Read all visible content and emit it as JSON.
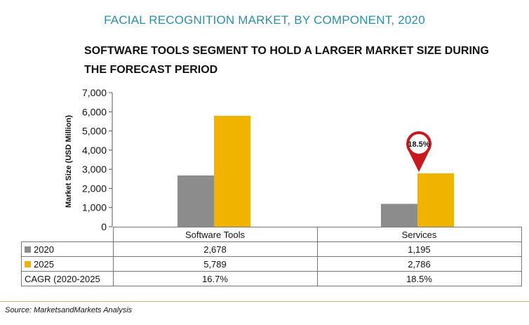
{
  "title": "FACIAL RECOGNITION MARKET, BY COMPONENT, 2020",
  "subtitle": "SOFTWARE TOOLS SEGMENT TO HOLD A LARGER MARKET SIZE DURING THE FORECAST PERIOD",
  "source": "Source: MarketsandMarkets Analysis",
  "colors": {
    "title": "#2a8fa6",
    "series_2020": "#8c8c8c",
    "series_2025": "#f0b400",
    "marker": "#c8191e"
  },
  "table": {
    "rows": [
      {
        "label": "2020",
        "values": [
          "2,678",
          "1,195"
        ]
      },
      {
        "label": "2025",
        "values": [
          "5,789",
          "2,786"
        ]
      },
      {
        "label": "CAGR (2020-2025",
        "values": [
          "16.7%",
          "18.5%"
        ]
      }
    ]
  },
  "chart_data": {
    "type": "bar",
    "categories": [
      "Software Tools",
      "Services"
    ],
    "series": [
      {
        "name": "2020",
        "values": [
          2678,
          1195
        ]
      },
      {
        "name": "2025",
        "values": [
          5789,
          2786
        ]
      }
    ],
    "ylabel": "Market Size (USD Million)",
    "ylim": [
      0,
      7000
    ],
    "yticks": [
      "0",
      "1,000",
      "2,000",
      "3,000",
      "4,000",
      "5,000",
      "6,000",
      "7,000"
    ],
    "annotation": {
      "category": "Services",
      "text": "18.5%"
    },
    "grid": false
  }
}
